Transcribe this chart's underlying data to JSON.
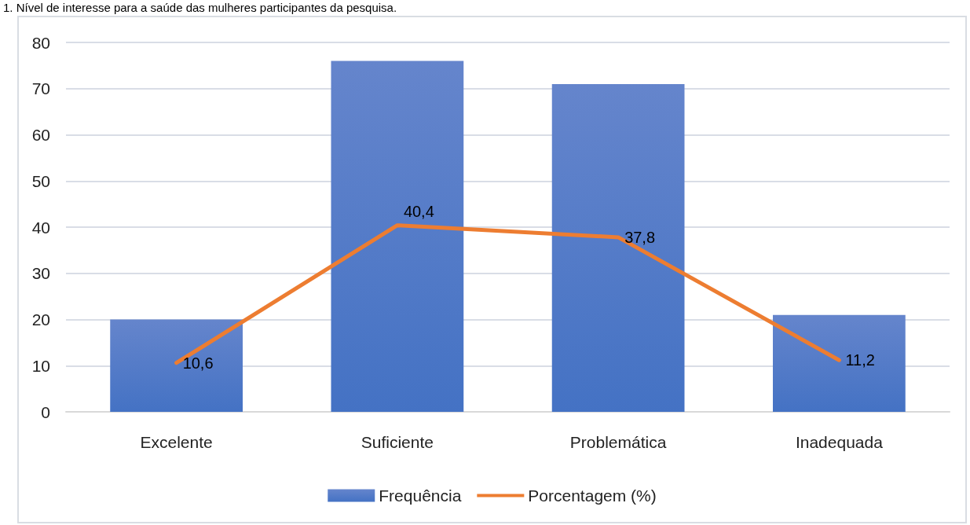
{
  "chart_data": {
    "type": "bar",
    "title": "1. Nível de interesse para a saúde das mulheres participantes da pesquisa.",
    "categories": [
      "Excelente",
      "Suficiente",
      "Problemática",
      "Inadequada"
    ],
    "series": [
      {
        "name": "Frequência",
        "color": "#4472c4",
        "values": [
          20,
          76,
          71,
          21
        ]
      },
      {
        "name": "Porcentagem (%)",
        "type": "line",
        "color": "#ed7d31",
        "values": [
          10.6,
          40.4,
          37.8,
          11.2
        ],
        "value_labels": [
          "10,6",
          "40,4",
          "37,8",
          "11,2"
        ]
      }
    ],
    "ylim": [
      0,
      80
    ],
    "yticks": [
      0,
      10,
      20,
      30,
      40,
      50,
      60,
      70,
      80
    ],
    "grid": "y",
    "legend": "bottom",
    "marker": "none",
    "line_style": "solid"
  }
}
